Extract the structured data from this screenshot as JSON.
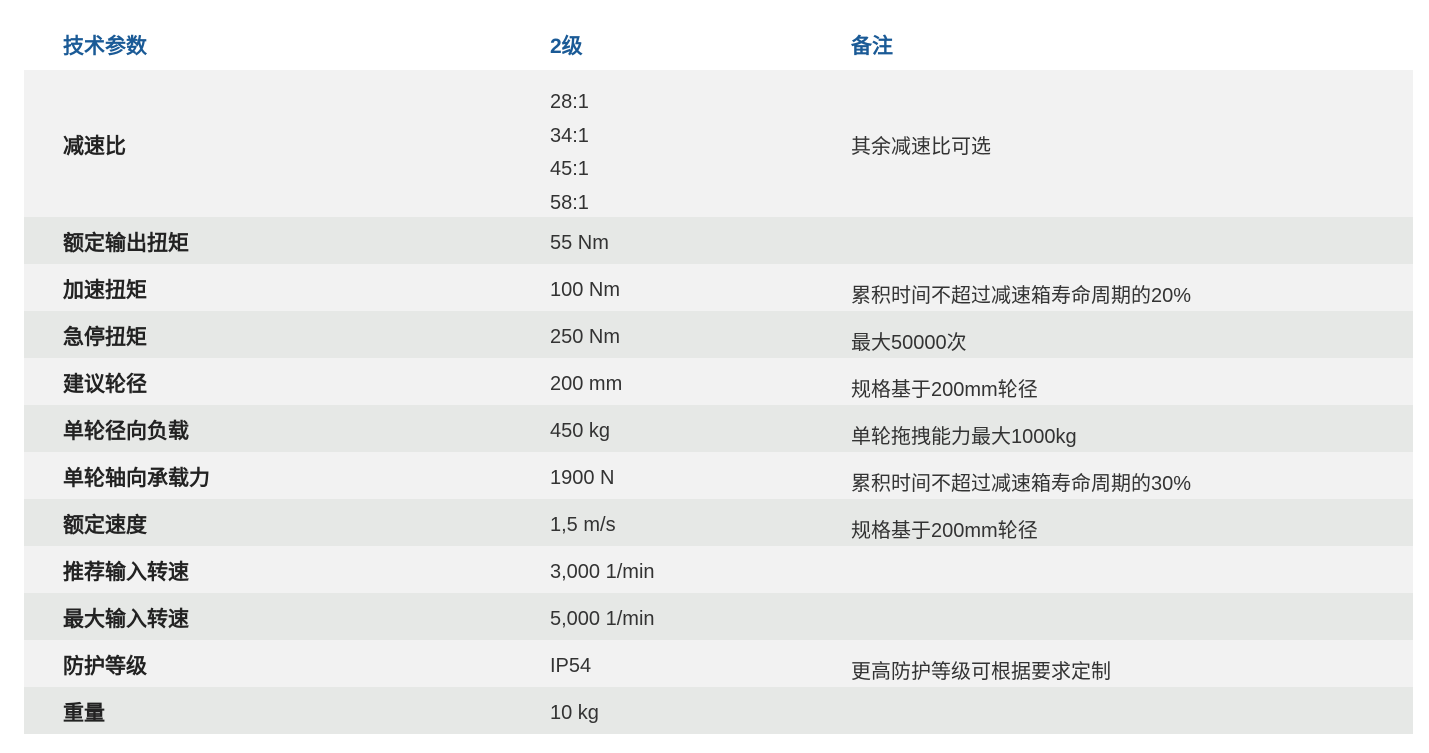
{
  "header": {
    "param": "技术参数",
    "stage": "2级",
    "note": "备注"
  },
  "rows": [
    {
      "param": "减速比",
      "values": [
        "28:1",
        "34:1",
        "45:1",
        "58:1"
      ],
      "note": "其余减速比可选"
    },
    {
      "param": "额定输出扭矩",
      "value": "55 Nm",
      "note": ""
    },
    {
      "param": "加速扭矩",
      "value": "100 Nm",
      "note": "累积时间不超过减速箱寿命周期的20%"
    },
    {
      "param": "急停扭矩",
      "value": "250 Nm",
      "note": "最大50000次"
    },
    {
      "param": "建议轮径",
      "value": "200 mm",
      "note": "规格基于200mm轮径"
    },
    {
      "param": "单轮径向负载",
      "value": "450 kg",
      "note": "单轮拖拽能力最大1000kg"
    },
    {
      "param": "单轮轴向承载力",
      "value": "1900 N",
      "note": "累积时间不超过减速箱寿命周期的30%"
    },
    {
      "param": "额定速度",
      "value": "1,5 m/s",
      "note": "规格基于200mm轮径"
    },
    {
      "param": "推荐输入转速",
      "value": "3,000 1/min",
      "note": ""
    },
    {
      "param": "最大输入转速",
      "value": "5,000 1/min",
      "note": ""
    },
    {
      "param": "防护等级",
      "value": "IP54",
      "note": "更高防护等级可根据要求定制"
    },
    {
      "param": "重量",
      "value": "10 kg",
      "note": ""
    }
  ],
  "colors": {
    "header_text": "#1a5a96",
    "row_light": "#f2f2f2",
    "row_dark": "#e6e8e6"
  }
}
